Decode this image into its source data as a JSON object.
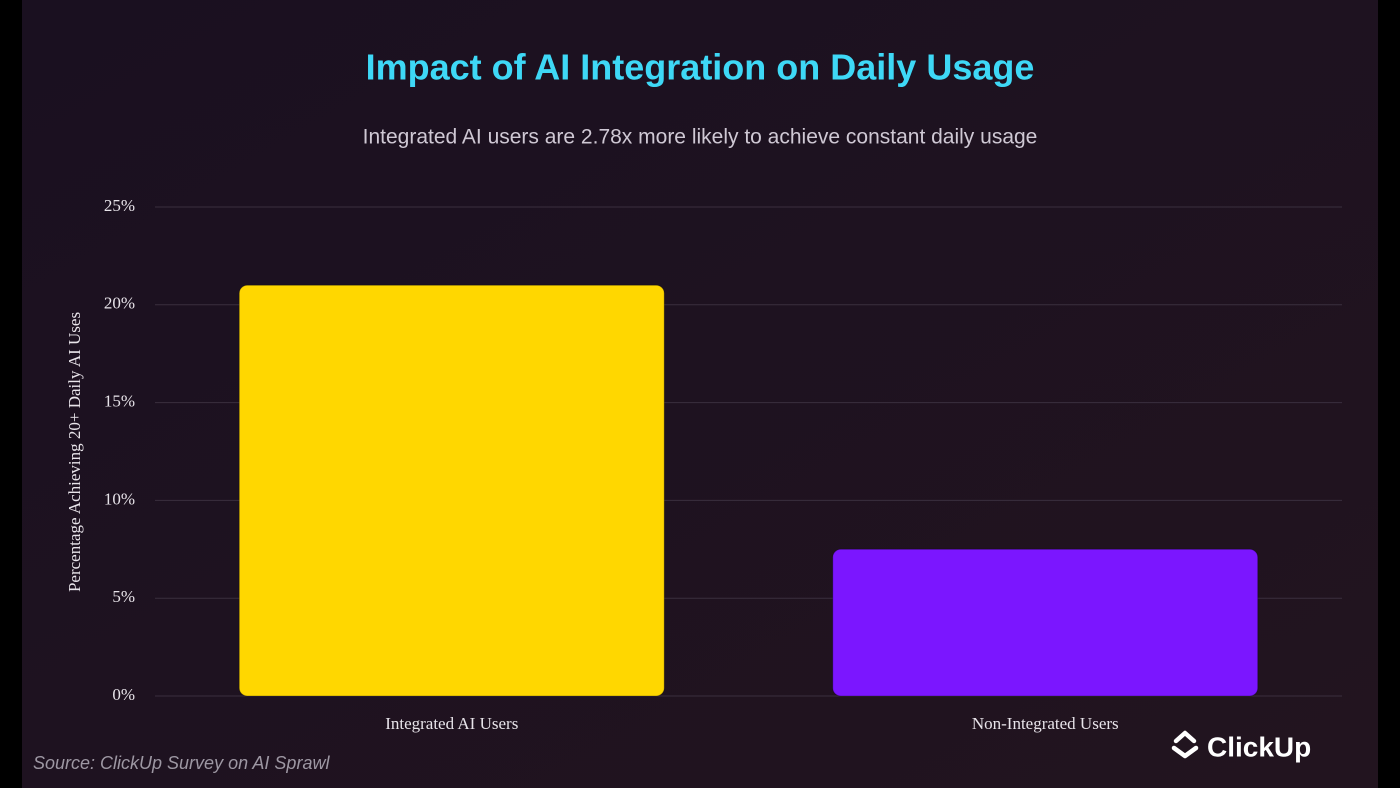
{
  "chart_data": {
    "type": "bar",
    "title": "Impact of AI Integration on Daily Usage",
    "subtitle": "Integrated AI users are 2.78x more likely to achieve constant daily usage",
    "y_label": "Percentage Achieving 20+ Daily AI Uses",
    "categories": [
      "Integrated AI Users",
      "Non-Integrated Users"
    ],
    "values": [
      21,
      7.5
    ],
    "colors": [
      "#ffd700",
      "#7b16ff"
    ],
    "ylim": [
      0,
      25
    ],
    "yticks": [
      {
        "value": 0,
        "label": "0%"
      },
      {
        "value": 5,
        "label": "5%"
      },
      {
        "value": 10,
        "label": "10%"
      },
      {
        "value": 15,
        "label": "15%"
      },
      {
        "value": 20,
        "label": "20%"
      },
      {
        "value": 25,
        "label": "25%"
      }
    ],
    "grid": true,
    "source": "Source: ClickUp Survey on AI Sprawl",
    "brand": "ClickUp"
  }
}
